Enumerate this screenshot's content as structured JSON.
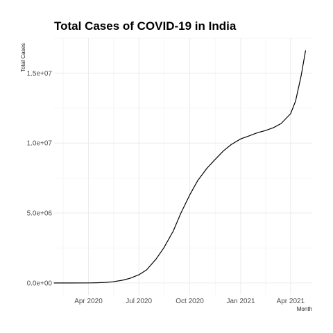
{
  "chart_data": {
    "type": "line",
    "title": "Total Cases of COVID-19 in India",
    "xlabel": "Month",
    "ylabel": "Total Cases",
    "x_ticks": [
      "Apr 2020",
      "Jul 2020",
      "Oct 2020",
      "Jan 2021",
      "Apr 2021"
    ],
    "y_ticks": [
      "0.0e+00",
      "5.0e+06",
      "1.0e+07",
      "1.5e+07"
    ],
    "y_tick_values": [
      0,
      5000000,
      10000000,
      15000000
    ],
    "x_tick_dates": [
      "2020-04-01",
      "2020-07-01",
      "2020-10-01",
      "2021-01-01",
      "2021-04-01"
    ],
    "xlim": [
      "2020-01-30",
      "2021-05-10"
    ],
    "ylim": [
      -850000,
      17500000
    ],
    "grid": true,
    "line_color": "#000000",
    "series": [
      {
        "points": [
          [
            "2020-01-30",
            1
          ],
          [
            "2020-03-01",
            3
          ],
          [
            "2020-04-01",
            1998
          ],
          [
            "2020-04-15",
            12000
          ],
          [
            "2020-05-01",
            35000
          ],
          [
            "2020-05-15",
            82000
          ],
          [
            "2020-06-01",
            191000
          ],
          [
            "2020-06-15",
            333000
          ],
          [
            "2020-07-01",
            585000
          ],
          [
            "2020-07-15",
            937000
          ],
          [
            "2020-08-01",
            1700000
          ],
          [
            "2020-08-15",
            2500000
          ],
          [
            "2020-09-01",
            3700000
          ],
          [
            "2020-09-15",
            5000000
          ],
          [
            "2020-10-01",
            6300000
          ],
          [
            "2020-10-15",
            7300000
          ],
          [
            "2020-11-01",
            8200000
          ],
          [
            "2020-11-15",
            8800000
          ],
          [
            "2020-12-01",
            9450000
          ],
          [
            "2020-12-15",
            9900000
          ],
          [
            "2021-01-01",
            10300000
          ],
          [
            "2021-01-15",
            10500000
          ],
          [
            "2021-02-01",
            10750000
          ],
          [
            "2021-02-15",
            10900000
          ],
          [
            "2021-03-01",
            11100000
          ],
          [
            "2021-03-15",
            11400000
          ],
          [
            "2021-04-01",
            12100000
          ],
          [
            "2021-04-10",
            13000000
          ],
          [
            "2021-04-20",
            14800000
          ],
          [
            "2021-04-28",
            16600000
          ]
        ]
      }
    ]
  }
}
